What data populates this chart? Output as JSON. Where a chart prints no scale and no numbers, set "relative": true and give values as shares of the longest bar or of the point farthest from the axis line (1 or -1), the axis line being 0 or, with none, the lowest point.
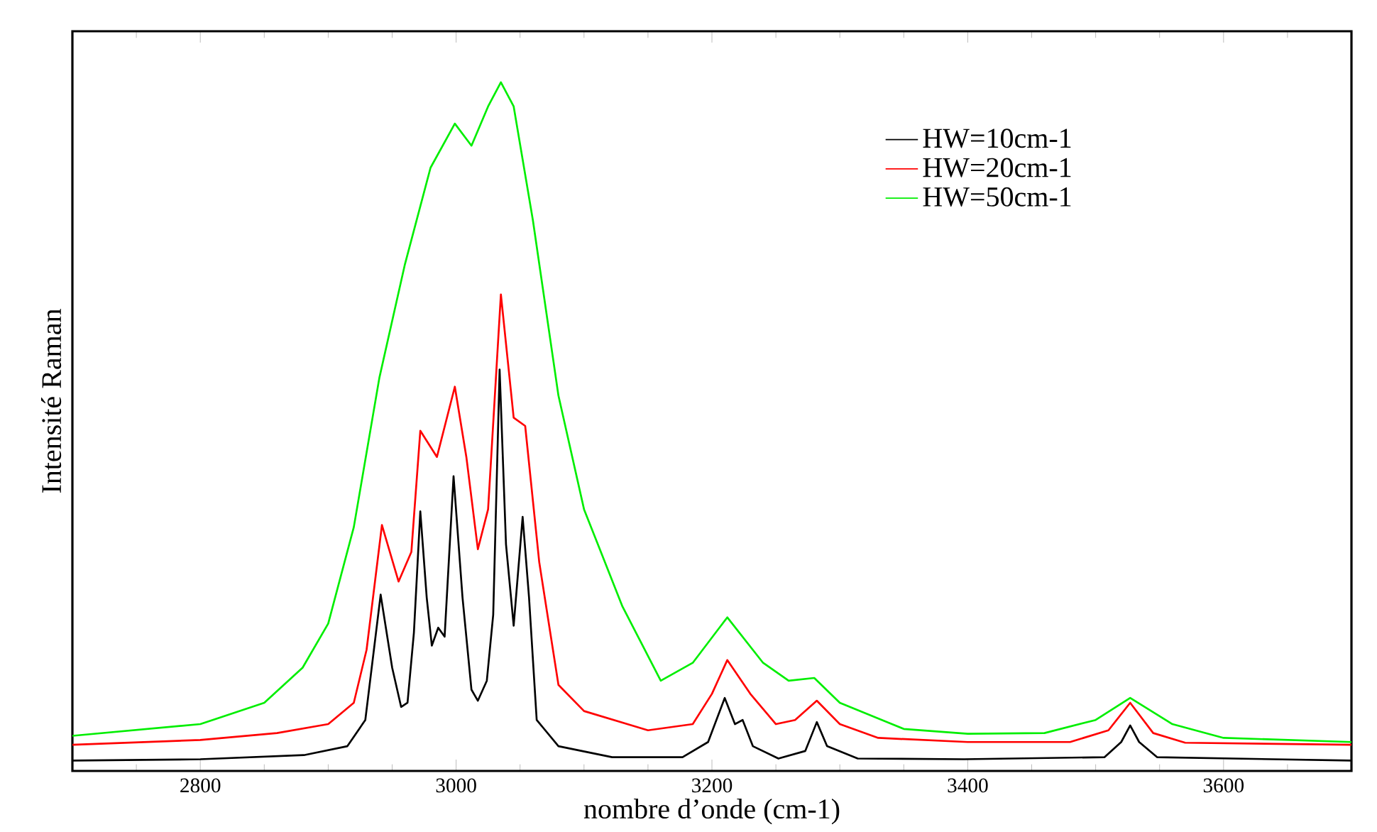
{
  "chart_data": {
    "type": "line",
    "xlabel": "nombre d’onde (cm-1)",
    "ylabel": "Intensité Raman",
    "relative": true,
    "legend": "top right",
    "xlim": [
      2700,
      3700
    ],
    "xticks": [
      {
        "value": 2750,
        "label": null
      },
      2800,
      {
        "value": 2850,
        "label": null
      },
      {
        "value": 2900,
        "label": null
      },
      {
        "value": 2950,
        "label": null
      },
      3000,
      {
        "value": 3050,
        "label": null
      },
      {
        "value": 3100,
        "label": null
      },
      {
        "value": 3150,
        "label": null
      },
      3200,
      {
        "value": 3250,
        "label": null
      },
      {
        "value": 3300,
        "label": null
      },
      {
        "value": 3350,
        "label": null
      },
      3400,
      {
        "value": 3450,
        "label": null
      },
      {
        "value": 3500,
        "label": null
      },
      {
        "value": 3550,
        "label": null
      },
      3600,
      {
        "value": 3650,
        "label": null
      }
    ],
    "series": [
      {
        "name": "HW=10cm-1",
        "color": "#000000",
        "x": [
          2700,
          2800,
          2881,
          2915,
          2929,
          2941,
          2950,
          2957,
          2962,
          2967,
          2972,
          2977,
          2981,
          2986,
          2991,
          2998,
          3005,
          3012,
          3017,
          3024,
          3029,
          3034,
          3039,
          3045,
          3052,
          3057,
          3063,
          3080,
          3122,
          3177,
          3197,
          3210,
          3218,
          3224,
          3232,
          3252,
          3273,
          3282,
          3290,
          3314,
          3397,
          3507,
          3520,
          3527,
          3534,
          3548,
          3700
        ],
        "values": [
          0.015,
          0.017,
          0.023,
          0.036,
          0.074,
          0.256,
          0.15,
          0.093,
          0.099,
          0.201,
          0.377,
          0.252,
          0.182,
          0.208,
          0.195,
          0.428,
          0.252,
          0.118,
          0.102,
          0.131,
          0.227,
          0.583,
          0.329,
          0.211,
          0.369,
          0.252,
          0.074,
          0.036,
          0.02,
          0.02,
          0.042,
          0.106,
          0.068,
          0.074,
          0.036,
          0.018,
          0.029,
          0.071,
          0.036,
          0.018,
          0.017,
          0.02,
          0.042,
          0.066,
          0.042,
          0.02,
          0.015
        ]
      },
      {
        "name": "HW=20cm-1",
        "color": "#ff0000",
        "x": [
          2700,
          2800,
          2860,
          2900,
          2920,
          2930,
          2942,
          2955,
          2965,
          2972,
          2985,
          2999,
          3008,
          3017,
          3025,
          3035,
          3045,
          3054,
          3065,
          3080,
          3100,
          3150,
          3185,
          3200,
          3212,
          3230,
          3250,
          3265,
          3282,
          3300,
          3330,
          3400,
          3480,
          3510,
          3527,
          3545,
          3570,
          3700
        ],
        "values": [
          0.038,
          0.045,
          0.055,
          0.068,
          0.099,
          0.176,
          0.357,
          0.275,
          0.318,
          0.494,
          0.456,
          0.558,
          0.456,
          0.322,
          0.38,
          0.692,
          0.513,
          0.501,
          0.303,
          0.125,
          0.087,
          0.059,
          0.068,
          0.112,
          0.161,
          0.112,
          0.068,
          0.074,
          0.102,
          0.068,
          0.048,
          0.042,
          0.042,
          0.059,
          0.099,
          0.055,
          0.041,
          0.038
        ]
      },
      {
        "name": "HW=50cm-1",
        "color": "#00ee00",
        "x": [
          2700,
          2800,
          2850,
          2880,
          2900,
          2920,
          2940,
          2960,
          2980,
          2999,
          3012,
          3025,
          3035,
          3045,
          3060,
          3080,
          3100,
          3130,
          3160,
          3185,
          3212,
          3240,
          3260,
          3280,
          3300,
          3350,
          3400,
          3460,
          3500,
          3527,
          3560,
          3600,
          3700
        ],
        "values": [
          0.051,
          0.068,
          0.099,
          0.15,
          0.214,
          0.354,
          0.571,
          0.736,
          0.876,
          0.94,
          0.908,
          0.965,
          1.0,
          0.965,
          0.8,
          0.545,
          0.38,
          0.239,
          0.131,
          0.157,
          0.223,
          0.157,
          0.131,
          0.135,
          0.099,
          0.061,
          0.054,
          0.055,
          0.074,
          0.106,
          0.068,
          0.048,
          0.042
        ]
      }
    ]
  }
}
